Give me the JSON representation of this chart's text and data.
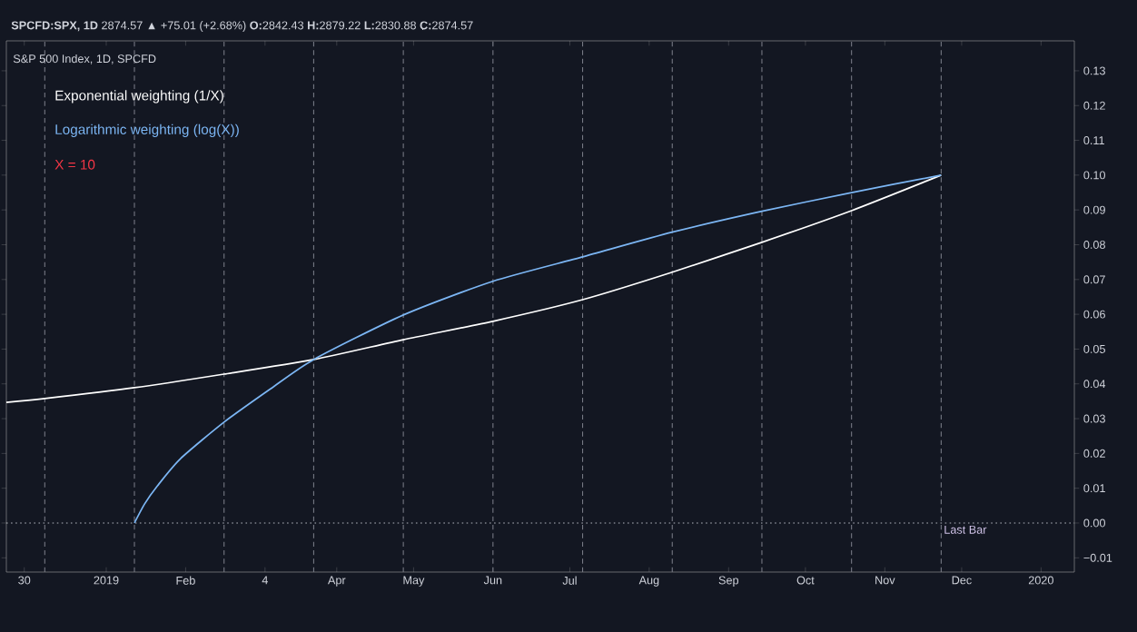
{
  "chart_data": {
    "type": "line",
    "title": "S&P 500 Index, 1D, SPCFD",
    "annotations": [
      "**SPCFD:SPX, 1D** 2874.57 ▲ +75.01 (+2.68%) **O:**2842.43 **H:**2879.22 **L:**2830.88 **C:**2874.57",
      "X = 10"
    ],
    "series": [
      {
        "name": "Exponential weighting (1/X)",
        "color": "#ffffff",
        "x": [
          "2018-11-23",
          "2018-12-08",
          "2019-01-12",
          "2019-02-16",
          "2019-03-23",
          "2019-04-27",
          "2019-06-01",
          "2019-07-06",
          "2019-08-10",
          "2019-09-14",
          "2019-10-19",
          "2019-11-23"
        ],
        "values": [
          0.0347,
          0.0358,
          0.0389,
          0.0428,
          0.047,
          0.0527,
          0.058,
          0.0642,
          0.0721,
          0.0807,
          0.0898,
          0.1
        ]
      },
      {
        "name": "Logarithmic weighting (log(X))",
        "color": "#7cb6f4",
        "x": [
          "2019-01-12",
          "2019-01-16",
          "2019-01-21",
          "2019-01-30",
          "2019-02-16",
          "2019-03-06",
          "2019-03-23",
          "2019-04-27",
          "2019-06-01",
          "2019-07-06",
          "2019-08-10",
          "2019-09-14",
          "2019-10-19",
          "2019-11-23"
        ],
        "values": [
          0,
          0.0055,
          0.0107,
          0.0185,
          0.029,
          0.0385,
          0.047,
          0.0598,
          0.0695,
          0.0765,
          0.0836,
          0.0896,
          0.095,
          0.1
        ]
      }
    ],
    "xlim": [
      "2018-11-23",
      "2020-01-14"
    ],
    "xticks": [
      {
        "value": "2018-11-30",
        "label": "30"
      },
      {
        "value": "2019-01-01",
        "label": "2019"
      },
      {
        "value": "2019-02-01",
        "label": "Feb"
      },
      {
        "value": "2019-03-04",
        "label": "4"
      },
      {
        "value": "2019-04-01",
        "label": "Apr"
      },
      {
        "value": "2019-05-01",
        "label": "May"
      },
      {
        "value": "2019-06-01",
        "label": "Jun"
      },
      {
        "value": "2019-07-01",
        "label": "Jul"
      },
      {
        "value": "2019-08-01",
        "label": "Aug"
      },
      {
        "value": "2019-09-01",
        "label": "Sep"
      },
      {
        "value": "2019-10-01",
        "label": "Oct"
      },
      {
        "value": "2019-11-01",
        "label": "Nov"
      },
      {
        "value": "2019-12-01",
        "label": "Dec"
      },
      {
        "value": "2020-01-01",
        "label": "2020"
      }
    ],
    "ylim": [
      -0.0141,
      0.1386
    ],
    "yticks": [
      {
        "value": -0.01,
        "label": "−0.01"
      },
      {
        "value": 0,
        "label": "0.00"
      },
      {
        "value": 0.01,
        "label": "0.01"
      },
      {
        "value": 0.02,
        "label": "0.02"
      },
      {
        "value": 0.03,
        "label": "0.03"
      },
      {
        "value": 0.04,
        "label": "0.04"
      },
      {
        "value": 0.05,
        "label": "0.05"
      },
      {
        "value": 0.06,
        "label": "0.06"
      },
      {
        "value": 0.07,
        "label": "0.07"
      },
      {
        "value": 0.08,
        "label": "0.08"
      },
      {
        "value": 0.09,
        "label": "0.09"
      },
      {
        "value": 0.1,
        "label": "0.10"
      },
      {
        "value": 0.11,
        "label": "0.11"
      },
      {
        "value": 0.12,
        "label": "0.12"
      },
      {
        "value": 0.13,
        "label": "0.13"
      }
    ],
    "ref_lines": [
      {
        "axis": "y",
        "value": 0,
        "color": "#b2b5be",
        "line_style": "dotted"
      },
      {
        "axis": "x",
        "value": "2018-12-08",
        "color": "#787b86",
        "line_style": "dashed"
      },
      {
        "axis": "x",
        "value": "2019-01-12",
        "color": "#787b86",
        "line_style": "dashed"
      },
      {
        "axis": "x",
        "value": "2019-02-16",
        "color": "#787b86",
        "line_style": "dashed"
      },
      {
        "axis": "x",
        "value": "2019-03-23",
        "color": "#787b86",
        "line_style": "dashed"
      },
      {
        "axis": "x",
        "value": "2019-04-27",
        "color": "#787b86",
        "line_style": "dashed"
      },
      {
        "axis": "x",
        "value": "2019-06-01",
        "color": "#787b86",
        "line_style": "dashed"
      },
      {
        "axis": "x",
        "value": "2019-07-06",
        "color": "#787b86",
        "line_style": "dashed"
      },
      {
        "axis": "x",
        "value": "2019-08-10",
        "color": "#787b86",
        "line_style": "dashed"
      },
      {
        "axis": "x",
        "value": "2019-09-14",
        "color": "#787b86",
        "line_style": "dashed"
      },
      {
        "axis": "x",
        "value": "2019-10-19",
        "color": "#787b86",
        "line_style": "dashed"
      },
      {
        "axis": "x",
        "value": "2019-11-23",
        "color": "#787b86",
        "line_style": "dashed",
        "label": "Last Bar"
      }
    ],
    "grid": false,
    "marker": "none",
    "line_style": "solid"
  }
}
